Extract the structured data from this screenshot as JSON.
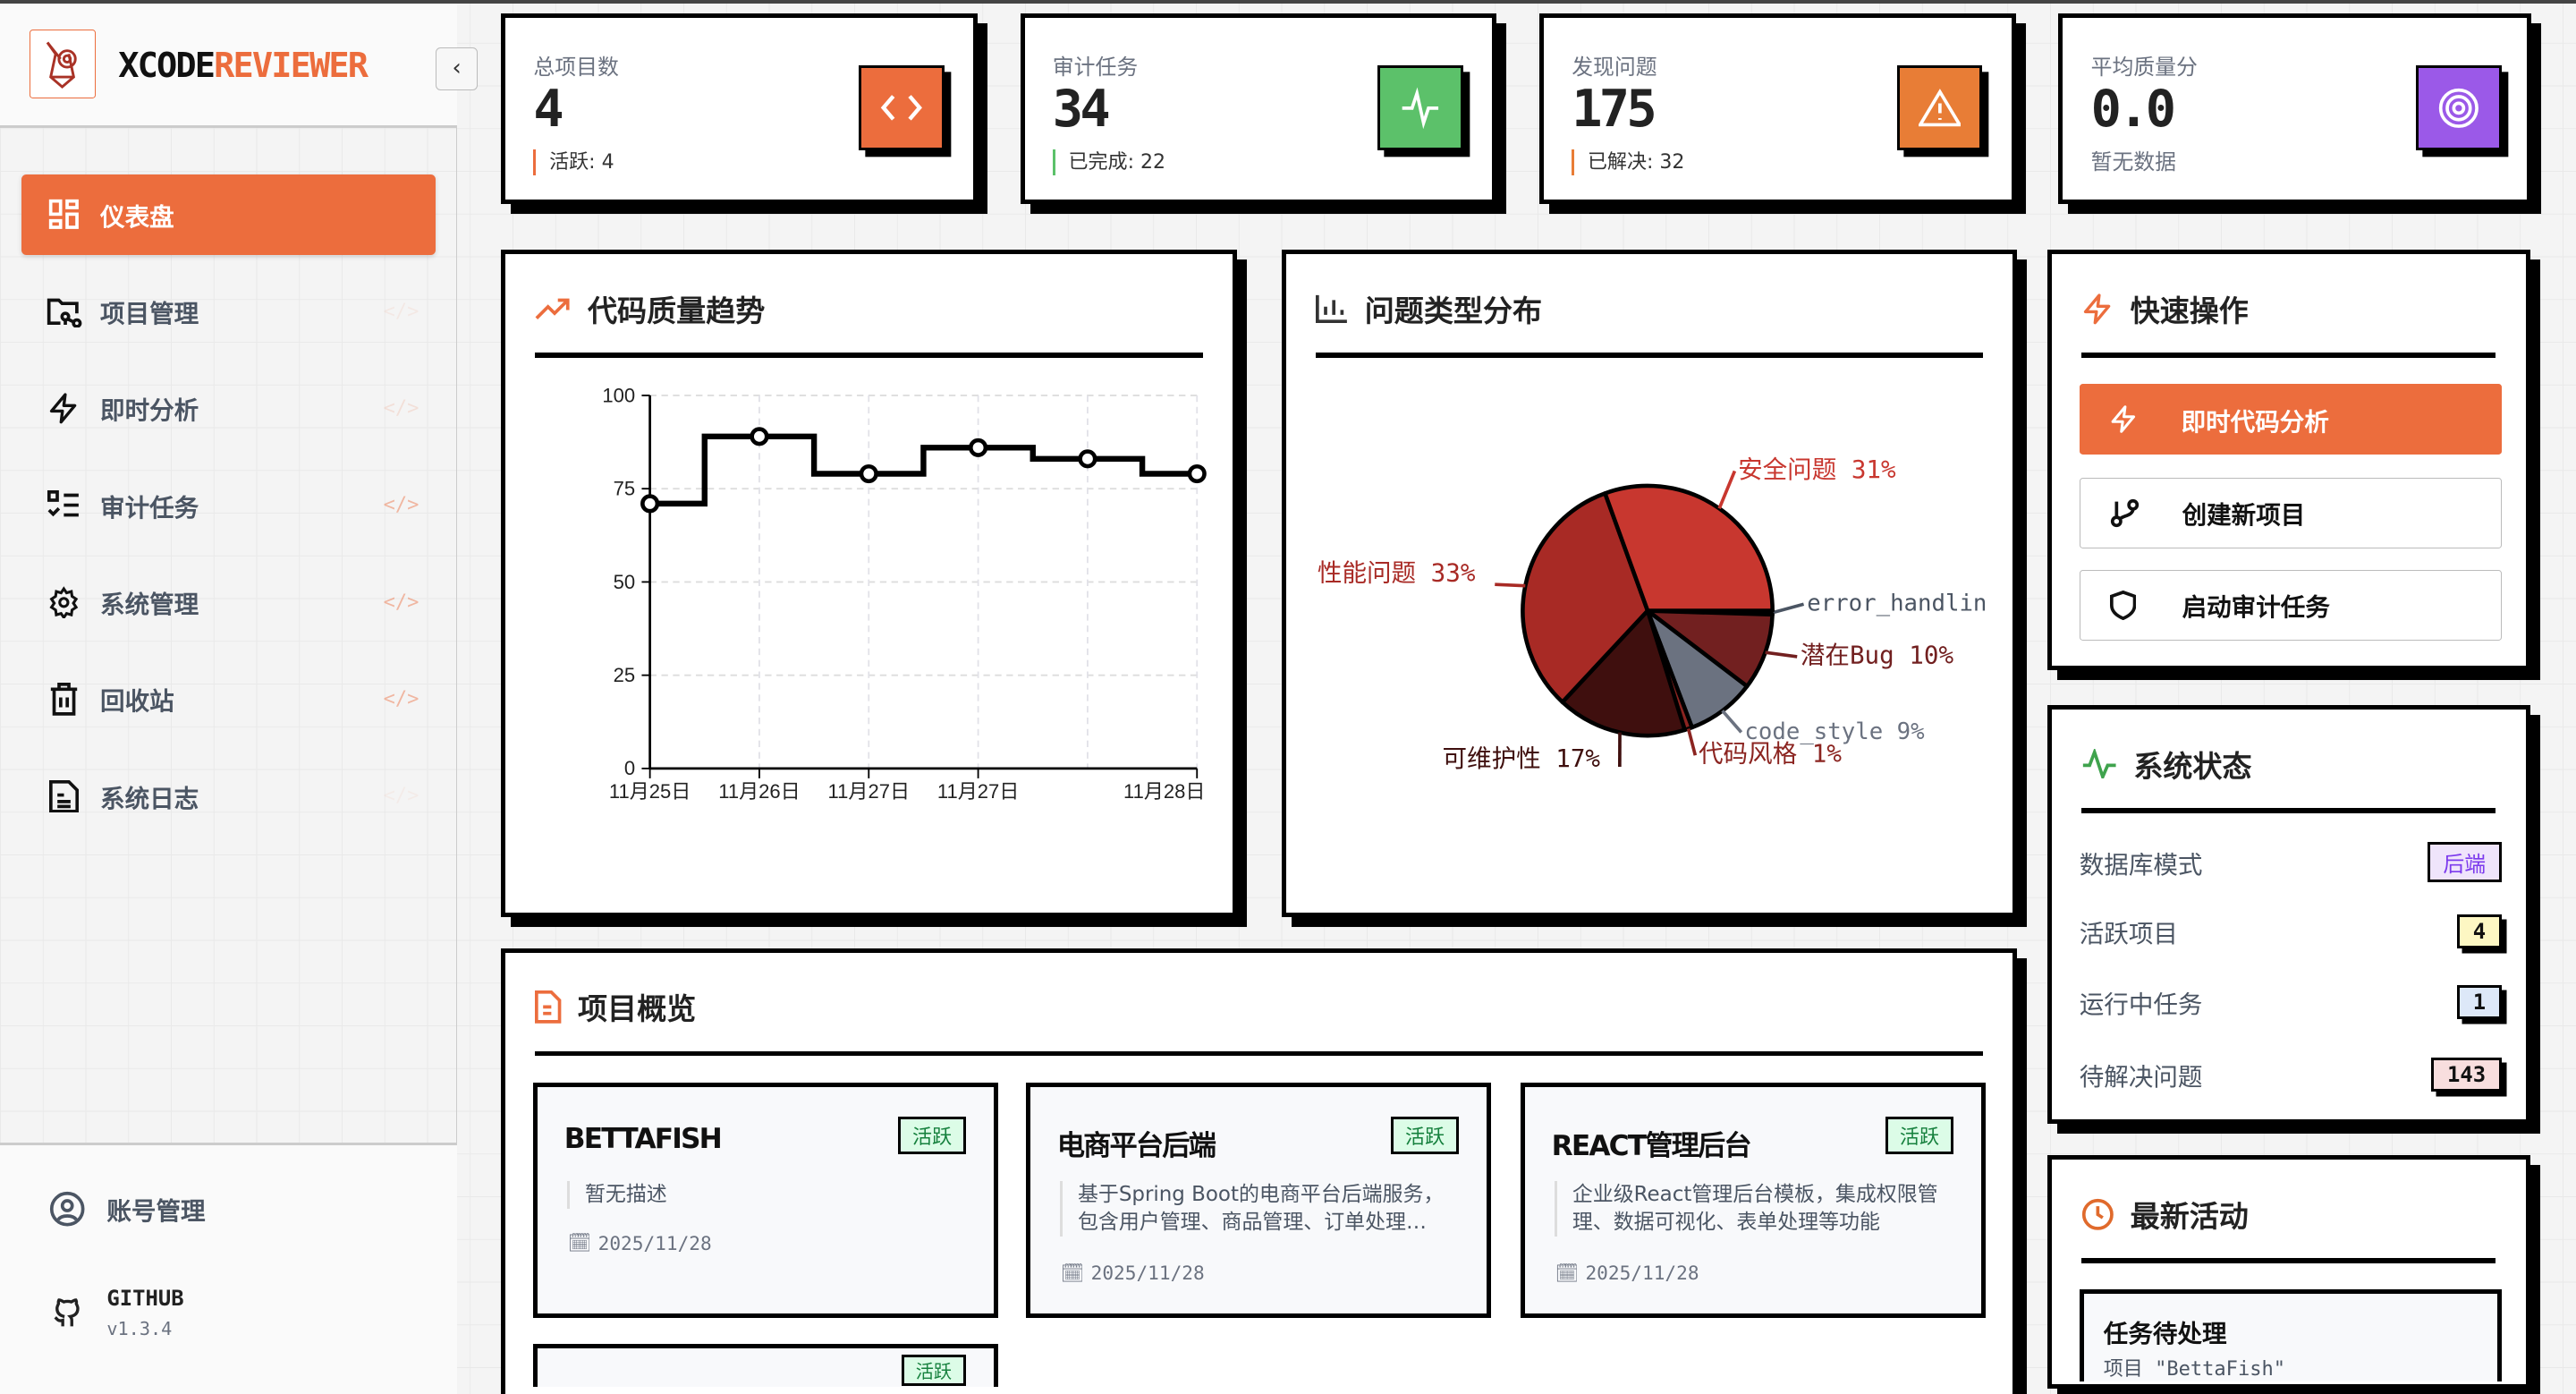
{
  "sidebar": {
    "brand_a": "XCODE",
    "brand_b": "REVIEWER",
    "collapse_icon": "chevron-left",
    "items": [
      {
        "label": "仪表盘",
        "icon": "dashboard-icon",
        "active": true
      },
      {
        "label": "项目管理",
        "icon": "folder-git-icon"
      },
      {
        "label": "即时分析",
        "icon": "zap-icon"
      },
      {
        "label": "审计任务",
        "icon": "list-check-icon"
      },
      {
        "label": "系统管理",
        "icon": "gear-icon"
      },
      {
        "label": "回收站",
        "icon": "trash-icon"
      },
      {
        "label": "系统日志",
        "icon": "file-text-icon"
      }
    ],
    "code_mark": "</>",
    "account": "账号管理",
    "github": "GITHUB",
    "version": "v1.3.4"
  },
  "stats": [
    {
      "label": "总项目数",
      "value": "4",
      "sub": "活跃: 4",
      "color": "#ec6d3d",
      "icon": "code-icon"
    },
    {
      "label": "审计任务",
      "value": "34",
      "sub": "已完成: 22",
      "color": "#5cc16a",
      "icon": "activity-icon"
    },
    {
      "label": "发现问题",
      "value": "175",
      "sub": "已解决: 32",
      "color": "#e87d36",
      "icon": "alert-triangle-icon"
    },
    {
      "label": "平均质量分",
      "value": "0.0",
      "sub": "暂无数据",
      "color": "#9b59e8",
      "icon": "target-icon"
    }
  ],
  "trend": {
    "title": "代码质量趋势"
  },
  "issues": {
    "title": "问题类型分布"
  },
  "chart_data": [
    {
      "type": "line",
      "title": "代码质量趋势",
      "step": true,
      "x": [
        "11月25日",
        "11月26日",
        "11月27日",
        "11月27日",
        "",
        "11月28日"
      ],
      "values": [
        71,
        89,
        79,
        86,
        83,
        79
      ],
      "yticks": [
        "0",
        "25",
        "50",
        "75",
        "100"
      ],
      "ylim": [
        0,
        100
      ],
      "grid": true
    },
    {
      "type": "pie",
      "title": "问题类型分布",
      "slices": [
        {
          "label": "error_handlin",
          "pct": "",
          "value": 0.5,
          "color": "#4b5563"
        },
        {
          "label": "潜在Bug",
          "pct": "10%",
          "value": 10,
          "color": "#722020"
        },
        {
          "label": "code_style",
          "pct": "9%",
          "value": 9,
          "color": "#6b7280"
        },
        {
          "label": "代码风格",
          "pct": "1%",
          "value": 1,
          "color": "#8b2420"
        },
        {
          "label": "可维护性",
          "pct": "17%",
          "value": 17,
          "color": "#3f0f0e"
        },
        {
          "label": "性能问题",
          "pct": "33%",
          "value": 33,
          "color": "#a82a25"
        },
        {
          "label": "安全问题",
          "pct": "31%",
          "value": 31,
          "color": "#c8372f"
        }
      ]
    }
  ],
  "quick": {
    "title": "快速操作",
    "buttons": [
      "即时代码分析",
      "创建新项目",
      "启动审计任务"
    ]
  },
  "status": {
    "title": "系统状态",
    "rows": [
      {
        "label": "数据库模式",
        "value": "后端",
        "bg": "#efe4fb",
        "fg": "#7c3aed"
      },
      {
        "label": "活跃项目",
        "value": "4",
        "bg": "#fdf7c3",
        "fg": "#111"
      },
      {
        "label": "运行中任务",
        "value": "1",
        "bg": "#dde8f8",
        "fg": "#111"
      },
      {
        "label": "待解决问题",
        "value": "143",
        "bg": "#f8dede",
        "fg": "#111"
      }
    ]
  },
  "activity": {
    "title": "最新活动",
    "items": [
      {
        "title": "任务待处理",
        "sub": "项目 \"BettaFish\""
      }
    ]
  },
  "projects": {
    "title": "项目概览",
    "items": [
      {
        "name": "BETTAFISH",
        "badge": "活跃",
        "desc": "暂无描述",
        "date": "2025/11/28"
      },
      {
        "name": "电商平台后端",
        "badge": "活跃",
        "desc": "基于Spring Boot的电商平台后端服务，包含用户管理、商品管理、订单处理…",
        "date": "2025/11/28"
      },
      {
        "name": "REACT管理后台",
        "badge": "活跃",
        "desc": "企业级React管理后台模板，集成权限管理、数据可视化、表单处理等功能",
        "date": "2025/11/28"
      },
      {
        "name": "",
        "badge": "活跃"
      }
    ]
  }
}
